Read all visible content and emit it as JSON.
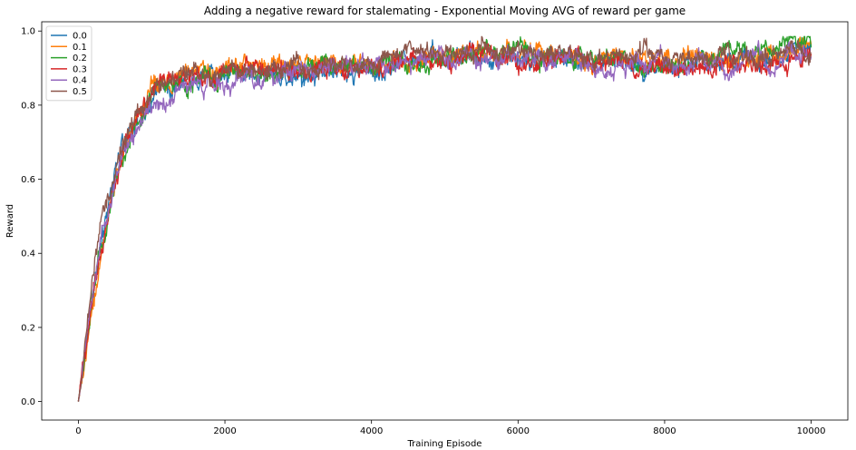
{
  "chart_data": {
    "type": "line",
    "title": "Adding a negative reward for stalemating - Exponential Moving AVG of reward per game",
    "xlabel": "Training Episode",
    "ylabel": "Reward",
    "xlim": [
      -500,
      10500
    ],
    "ylim": [
      -0.05,
      1.025
    ],
    "xticks": [
      0,
      2000,
      4000,
      6000,
      8000,
      10000
    ],
    "xtick_labels": [
      "0",
      "2000",
      "4000",
      "6000",
      "8000",
      "10000"
    ],
    "yticks": [
      0.0,
      0.2,
      0.4,
      0.6,
      0.8,
      1.0
    ],
    "ytick_labels": [
      "0.0",
      "0.2",
      "0.4",
      "0.6",
      "0.8",
      "1.0"
    ],
    "grid": false,
    "legend": "top-left",
    "x": [
      0,
      100,
      200,
      300,
      400,
      500,
      600,
      800,
      1000,
      1200,
      1500,
      2000,
      2500,
      3000,
      3500,
      4000,
      4500,
      5000,
      5500,
      6000,
      6500,
      7000,
      7500,
      8000,
      8500,
      9000,
      9500,
      10000
    ],
    "series": [
      {
        "name": "0.0",
        "color": "#1f77b4",
        "values": [
          0.0,
          0.15,
          0.3,
          0.42,
          0.52,
          0.6,
          0.68,
          0.76,
          0.82,
          0.86,
          0.88,
          0.89,
          0.9,
          0.9,
          0.92,
          0.91,
          0.93,
          0.93,
          0.93,
          0.94,
          0.93,
          0.93,
          0.92,
          0.92,
          0.92,
          0.91,
          0.92,
          0.94
        ]
      },
      {
        "name": "0.1",
        "color": "#ff7f0e",
        "values": [
          0.0,
          0.12,
          0.26,
          0.38,
          0.48,
          0.58,
          0.67,
          0.76,
          0.83,
          0.87,
          0.88,
          0.89,
          0.9,
          0.91,
          0.91,
          0.9,
          0.92,
          0.93,
          0.93,
          0.94,
          0.93,
          0.92,
          0.93,
          0.92,
          0.93,
          0.93,
          0.94,
          0.95
        ]
      },
      {
        "name": "0.2",
        "color": "#2ca02c",
        "values": [
          0.0,
          0.14,
          0.28,
          0.4,
          0.5,
          0.59,
          0.67,
          0.75,
          0.81,
          0.85,
          0.86,
          0.88,
          0.89,
          0.9,
          0.91,
          0.92,
          0.93,
          0.93,
          0.93,
          0.94,
          0.93,
          0.92,
          0.92,
          0.91,
          0.92,
          0.93,
          0.94,
          0.95
        ]
      },
      {
        "name": "0.3",
        "color": "#d62728",
        "values": [
          0.0,
          0.13,
          0.27,
          0.39,
          0.49,
          0.58,
          0.66,
          0.76,
          0.82,
          0.86,
          0.88,
          0.89,
          0.9,
          0.9,
          0.9,
          0.91,
          0.92,
          0.92,
          0.93,
          0.93,
          0.92,
          0.92,
          0.91,
          0.91,
          0.9,
          0.91,
          0.92,
          0.94
        ]
      },
      {
        "name": "0.4",
        "color": "#9467bd",
        "values": [
          0.0,
          0.14,
          0.29,
          0.41,
          0.51,
          0.6,
          0.68,
          0.75,
          0.8,
          0.82,
          0.85,
          0.86,
          0.87,
          0.89,
          0.9,
          0.9,
          0.91,
          0.92,
          0.94,
          0.93,
          0.92,
          0.91,
          0.91,
          0.91,
          0.91,
          0.92,
          0.92,
          0.93
        ]
      },
      {
        "name": "0.5",
        "color": "#8c564b",
        "values": [
          0.0,
          0.16,
          0.32,
          0.45,
          0.55,
          0.63,
          0.7,
          0.77,
          0.83,
          0.86,
          0.89,
          0.9,
          0.9,
          0.91,
          0.92,
          0.92,
          0.93,
          0.93,
          0.94,
          0.94,
          0.93,
          0.93,
          0.92,
          0.92,
          0.92,
          0.92,
          0.93,
          0.94
        ]
      }
    ]
  }
}
